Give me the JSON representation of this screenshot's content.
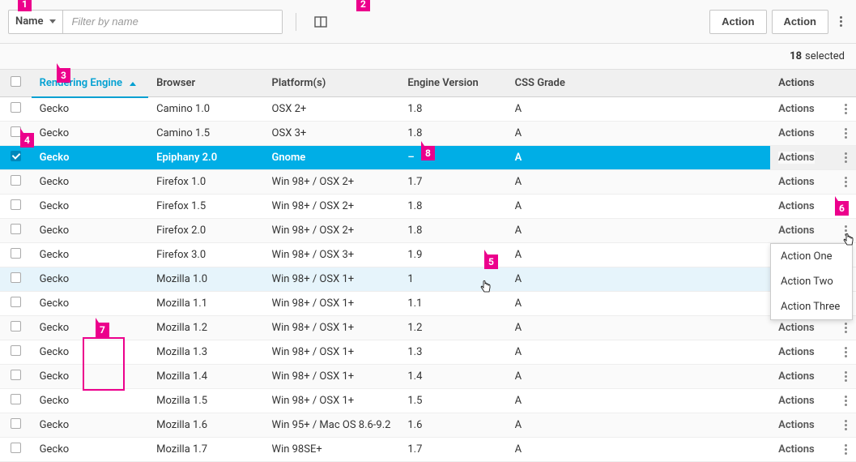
{
  "toolbar": {
    "filter_field_label": "Name",
    "filter_placeholder": "Filter by name",
    "action1_label": "Action",
    "action2_label": "Action"
  },
  "selection": {
    "count": "18",
    "suffix": "selected"
  },
  "columns": {
    "engine": "Rendering Engine",
    "browser": "Browser",
    "platform": "Platform(s)",
    "version": "Engine Version",
    "grade": "CSS Grade",
    "actions": "Actions"
  },
  "rows": [
    {
      "engine": "Gecko",
      "browser": "Camino 1.0",
      "platform": "OSX 2+",
      "version": "1.8",
      "grade": "A",
      "actions": "Actions"
    },
    {
      "engine": "Gecko",
      "browser": "Camino 1.5",
      "platform": "OSX 3+",
      "version": "1.8",
      "grade": "A",
      "actions": "Actions"
    },
    {
      "engine": "Gecko",
      "browser": "Epiphany 2.0",
      "platform": "Gnome",
      "version": "–",
      "grade": "A",
      "actions": "Actions"
    },
    {
      "engine": "Gecko",
      "browser": "Firefox 1.0",
      "platform": "Win 98+ / OSX 2+",
      "version": "1.7",
      "grade": "A",
      "actions": "Actions"
    },
    {
      "engine": "Gecko",
      "browser": "Firefox 1.5",
      "platform": "Win 98+ / OSX 2+",
      "version": "1.8",
      "grade": "A",
      "actions": "Actions"
    },
    {
      "engine": "Gecko",
      "browser": "Firefox 2.0",
      "platform": "Win 98+ / OSX 2+",
      "version": "1.8",
      "grade": "A",
      "actions": "Actions"
    },
    {
      "engine": "Gecko",
      "browser": "Firefox 3.0",
      "platform": "Win 98+ / OSX 3+",
      "version": "1.9",
      "grade": "A",
      "actions": "Actions"
    },
    {
      "engine": "Gecko",
      "browser": "Mozilla 1.0",
      "platform": "Win 98+ / OSX 1+",
      "version": "1",
      "grade": "A",
      "actions": "Actions"
    },
    {
      "engine": "Gecko",
      "browser": "Mozilla 1.1",
      "platform": "Win 98+ / OSX 1+",
      "version": "1.1",
      "grade": "A",
      "actions": "Actions"
    },
    {
      "engine": "Gecko",
      "browser": "Mozilla 1.2",
      "platform": "Win 98+ / OSX 1+",
      "version": "1.2",
      "grade": "A",
      "actions": "Actions"
    },
    {
      "engine": "Gecko",
      "browser": "Mozilla 1.3",
      "platform": "Win 98+ / OSX 1+",
      "version": "1.3",
      "grade": "A",
      "actions": "Actions"
    },
    {
      "engine": "Gecko",
      "browser": "Mozilla 1.4",
      "platform": "Win 98+ / OSX 1+",
      "version": "1.4",
      "grade": "A",
      "actions": "Actions"
    },
    {
      "engine": "Gecko",
      "browser": "Mozilla 1.5",
      "platform": "Win 98+ / OSX 1+",
      "version": "1.5",
      "grade": "A",
      "actions": "Actions"
    },
    {
      "engine": "Gecko",
      "browser": "Mozilla 1.6",
      "platform": "Win 95+ / Mac OS 8.6-9.2",
      "version": "1.6",
      "grade": "A",
      "actions": "Actions"
    },
    {
      "engine": "Gecko",
      "browser": "Mozilla 1.7",
      "platform": "Win 98SE+",
      "version": "1.7",
      "grade": "A",
      "actions": "Actions"
    }
  ],
  "dropdown": {
    "item1": "Action One",
    "item2": "Action Two",
    "item3": "Action Three"
  },
  "markers": {
    "m1": "1",
    "m2": "2",
    "m3": "3",
    "m4": "4",
    "m5": "5",
    "m6": "6",
    "m7": "7",
    "m8": "8"
  },
  "colors": {
    "accent": "#00aee6",
    "marker": "#ec008c",
    "header_bg": "#f0f0f0",
    "hover_bg": "#e6f4fb"
  }
}
